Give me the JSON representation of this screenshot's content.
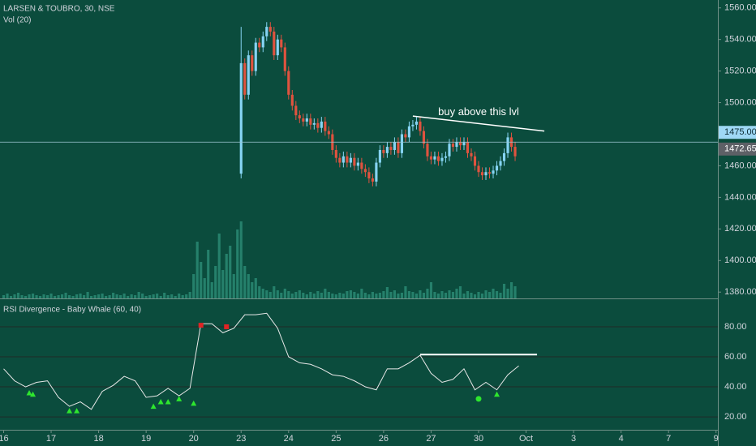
{
  "chart_data": [
    {
      "type": "candlestick",
      "title": "LARSEN & TOUBRO, 30, NSE",
      "up_color": "#86d4f3",
      "down_color": "#e0533f",
      "x": [
        65,
        66,
        67,
        68,
        69,
        70,
        71,
        72,
        73,
        74,
        75,
        76,
        77,
        78,
        79,
        80,
        81,
        82,
        83,
        84,
        85,
        86,
        87,
        88,
        89,
        90,
        91,
        92,
        93,
        94,
        95,
        96,
        97,
        98,
        99,
        100,
        101,
        102,
        103,
        104,
        105,
        106,
        107,
        108,
        109,
        110,
        111,
        112,
        113,
        114,
        115,
        116,
        117,
        118,
        119,
        120,
        121,
        122,
        123,
        124,
        125,
        126,
        127,
        128,
        129,
        130,
        131,
        132,
        133,
        134,
        135,
        136,
        137,
        138,
        139,
        140
      ],
      "open": [
        1455,
        1525,
        1505,
        1530,
        1520,
        1538,
        1535,
        1542,
        1548,
        1545,
        1530,
        1540,
        1535,
        1520,
        1505,
        1498,
        1492,
        1490,
        1488,
        1490,
        1486,
        1487,
        1484,
        1488,
        1482,
        1480,
        1470,
        1465,
        1462,
        1466,
        1462,
        1465,
        1460,
        1462,
        1458,
        1456,
        1452,
        1450,
        1462,
        1470,
        1468,
        1472,
        1470,
        1475,
        1468,
        1480,
        1478,
        1485,
        1486,
        1488,
        1482,
        1474,
        1466,
        1464,
        1466,
        1463,
        1465,
        1466,
        1474,
        1472,
        1475,
        1473,
        1475,
        1468,
        1466,
        1460,
        1456,
        1454,
        1456,
        1455,
        1457,
        1460,
        1463,
        1468,
        1478,
        1472
      ],
      "high": [
        1548,
        1528,
        1533,
        1533,
        1541,
        1541,
        1545,
        1551,
        1551,
        1548,
        1543,
        1543,
        1538,
        1523,
        1508,
        1501,
        1495,
        1493,
        1493,
        1493,
        1490,
        1490,
        1491,
        1491,
        1485,
        1483,
        1473,
        1468,
        1469,
        1469,
        1468,
        1468,
        1465,
        1465,
        1461,
        1459,
        1455,
        1465,
        1473,
        1473,
        1475,
        1475,
        1478,
        1478,
        1483,
        1483,
        1488,
        1489,
        1491,
        1491,
        1485,
        1477,
        1469,
        1469,
        1469,
        1468,
        1469,
        1477,
        1477,
        1478,
        1478,
        1478,
        1478,
        1471,
        1469,
        1463,
        1459,
        1459,
        1459,
        1460,
        1463,
        1466,
        1471,
        1481,
        1481,
        1475
      ],
      "low": [
        1452,
        1502,
        1502,
        1517,
        1517,
        1532,
        1532,
        1539,
        1542,
        1527,
        1527,
        1532,
        1517,
        1502,
        1495,
        1489,
        1487,
        1485,
        1485,
        1483,
        1483,
        1481,
        1481,
        1479,
        1477,
        1467,
        1462,
        1459,
        1459,
        1459,
        1459,
        1457,
        1457,
        1455,
        1453,
        1449,
        1447,
        1447,
        1459,
        1465,
        1465,
        1467,
        1467,
        1465,
        1465,
        1475,
        1475,
        1482,
        1483,
        1479,
        1471,
        1463,
        1461,
        1461,
        1460,
        1460,
        1462,
        1463,
        1469,
        1469,
        1470,
        1470,
        1465,
        1463,
        1457,
        1453,
        1451,
        1451,
        1452,
        1452,
        1454,
        1457,
        1460,
        1465,
        1469,
        1463
      ],
      "close": [
        1525,
        1505,
        1530,
        1520,
        1538,
        1535,
        1542,
        1548,
        1545,
        1530,
        1540,
        1535,
        1520,
        1505,
        1498,
        1492,
        1490,
        1488,
        1490,
        1486,
        1487,
        1484,
        1488,
        1482,
        1480,
        1470,
        1465,
        1462,
        1466,
        1462,
        1465,
        1460,
        1462,
        1458,
        1456,
        1452,
        1450,
        1462,
        1470,
        1468,
        1472,
        1470,
        1475,
        1468,
        1480,
        1478,
        1485,
        1486,
        1488,
        1482,
        1474,
        1466,
        1464,
        1466,
        1463,
        1465,
        1466,
        1474,
        1472,
        1475,
        1473,
        1475,
        1468,
        1466,
        1460,
        1456,
        1454,
        1456,
        1455,
        1457,
        1460,
        1463,
        1468,
        1478,
        1472,
        1466
      ],
      "ylim": [
        1376,
        1565
      ],
      "yticks": [
        {
          "value": 1560,
          "label": "1560.00"
        },
        {
          "value": 1540,
          "label": "1540.00"
        },
        {
          "value": 1520,
          "label": "1520.00"
        },
        {
          "value": 1500,
          "label": "1500.00"
        },
        {
          "value": 1460,
          "label": "1460.00"
        },
        {
          "value": 1440,
          "label": "1440.00"
        },
        {
          "value": 1420,
          "label": "1420.00"
        },
        {
          "value": 1400,
          "label": "1400.00"
        },
        {
          "value": 1380,
          "label": "1380.00"
        }
      ],
      "price_lines": [
        {
          "value": 1475,
          "label": "1475.00",
          "color": "#9fd8f5"
        },
        {
          "value": 1472.65,
          "label": "1472.65",
          "color": "#5d6066"
        }
      ],
      "annotations": [
        {
          "text": "buy above this lvl",
          "x": [
            112,
            148
          ],
          "values": [
            1491.5,
            1482
          ]
        }
      ]
    },
    {
      "type": "bar",
      "title": "Vol (20)",
      "color": "#2c8d77",
      "values": [
        4,
        6,
        3,
        5,
        7,
        4,
        3,
        5,
        6,
        4,
        3,
        5,
        4,
        6,
        3,
        4,
        5,
        7,
        4,
        3,
        5,
        6,
        4,
        8,
        3,
        4,
        5,
        6,
        3,
        4,
        7,
        5,
        4,
        6,
        3,
        5,
        4,
        8,
        6,
        3,
        4,
        5,
        6,
        3,
        7,
        4,
        5,
        3,
        6,
        4,
        5,
        8,
        30,
        70,
        45,
        25,
        60,
        20,
        40,
        80,
        35,
        55,
        65,
        30,
        85,
        95,
        40,
        30,
        20,
        25,
        15,
        12,
        10,
        8,
        15,
        10,
        7,
        12,
        9,
        6,
        8,
        10,
        7,
        5,
        8,
        6,
        9,
        7,
        12,
        8,
        6,
        5,
        7,
        6,
        9,
        10,
        8,
        6,
        12,
        7,
        5,
        8,
        6,
        7,
        9,
        14,
        8,
        10,
        6,
        7,
        15,
        9,
        8,
        6,
        10,
        7,
        12,
        20,
        8,
        6,
        9,
        7,
        10,
        8,
        12,
        15,
        6,
        9,
        7,
        5,
        8,
        6,
        10,
        8,
        12,
        9,
        7,
        18,
        12,
        20,
        15
      ]
    },
    {
      "type": "line",
      "title": "RSI Divergence - Baby Whale (60, 40)",
      "color": "#e8e8e8",
      "grid": true,
      "x": [
        0,
        3,
        6,
        9,
        12,
        15,
        18,
        21,
        24,
        27,
        30,
        33,
        36,
        39,
        42,
        45,
        48,
        51,
        54,
        57,
        60,
        63,
        66,
        69,
        72,
        75,
        78,
        81,
        84,
        87,
        90,
        93,
        96,
        99,
        102,
        105,
        108,
        111,
        114,
        117,
        120,
        123,
        126,
        129,
        132,
        135,
        138,
        141
      ],
      "values": [
        52,
        44,
        40,
        43,
        44,
        33,
        27,
        30,
        25,
        37,
        41,
        47,
        44,
        33,
        34,
        39,
        34,
        39,
        82,
        82,
        76,
        79,
        88,
        88,
        89,
        79,
        60,
        56,
        55,
        52,
        48,
        47,
        44,
        40,
        38,
        52,
        52,
        56,
        61,
        49,
        43,
        45,
        52,
        38,
        43,
        38,
        48,
        54
      ],
      "ylim": [
        11.4,
        97.8
      ],
      "yticks": [
        {
          "value": 80,
          "label": "80.00"
        },
        {
          "value": 60,
          "label": "60.00"
        },
        {
          "value": 40,
          "label": "40.00"
        },
        {
          "value": 20,
          "label": "20.00"
        }
      ],
      "xlim": [
        -1,
        195.5
      ],
      "xticks": [
        {
          "value": 0,
          "label": "16"
        },
        {
          "value": 13,
          "label": "17"
        },
        {
          "value": 26,
          "label": "18"
        },
        {
          "value": 39,
          "label": "19"
        },
        {
          "value": 52,
          "label": "20"
        },
        {
          "value": 65,
          "label": "23"
        },
        {
          "value": 78,
          "label": "24"
        },
        {
          "value": 91,
          "label": "25"
        },
        {
          "value": 104,
          "label": "26"
        },
        {
          "value": 117,
          "label": "27"
        },
        {
          "value": 130,
          "label": "30"
        },
        {
          "value": 143,
          "label": "Oct"
        },
        {
          "value": 156,
          "label": "3"
        },
        {
          "value": 169,
          "label": "4"
        },
        {
          "value": 182,
          "label": "7"
        },
        {
          "value": 195,
          "label": "9"
        }
      ],
      "signals": [
        {
          "shape": "triangle",
          "color": "#2ee62e",
          "x": [
            7,
            8,
            18,
            20,
            41,
            43,
            45,
            48,
            52,
            135
          ],
          "values": [
            36,
            35,
            24,
            24,
            27,
            30,
            30,
            32,
            29,
            35
          ]
        },
        {
          "shape": "square",
          "color": "#e02424",
          "x": [
            54,
            61
          ],
          "values": [
            81,
            80
          ]
        },
        {
          "shape": "circle",
          "color": "#2ee62e",
          "x": [
            130
          ],
          "values": [
            32
          ]
        }
      ],
      "annotations": [
        {
          "x": [
            114,
            146
          ],
          "values": [
            61.5,
            61.5
          ]
        }
      ]
    }
  ]
}
